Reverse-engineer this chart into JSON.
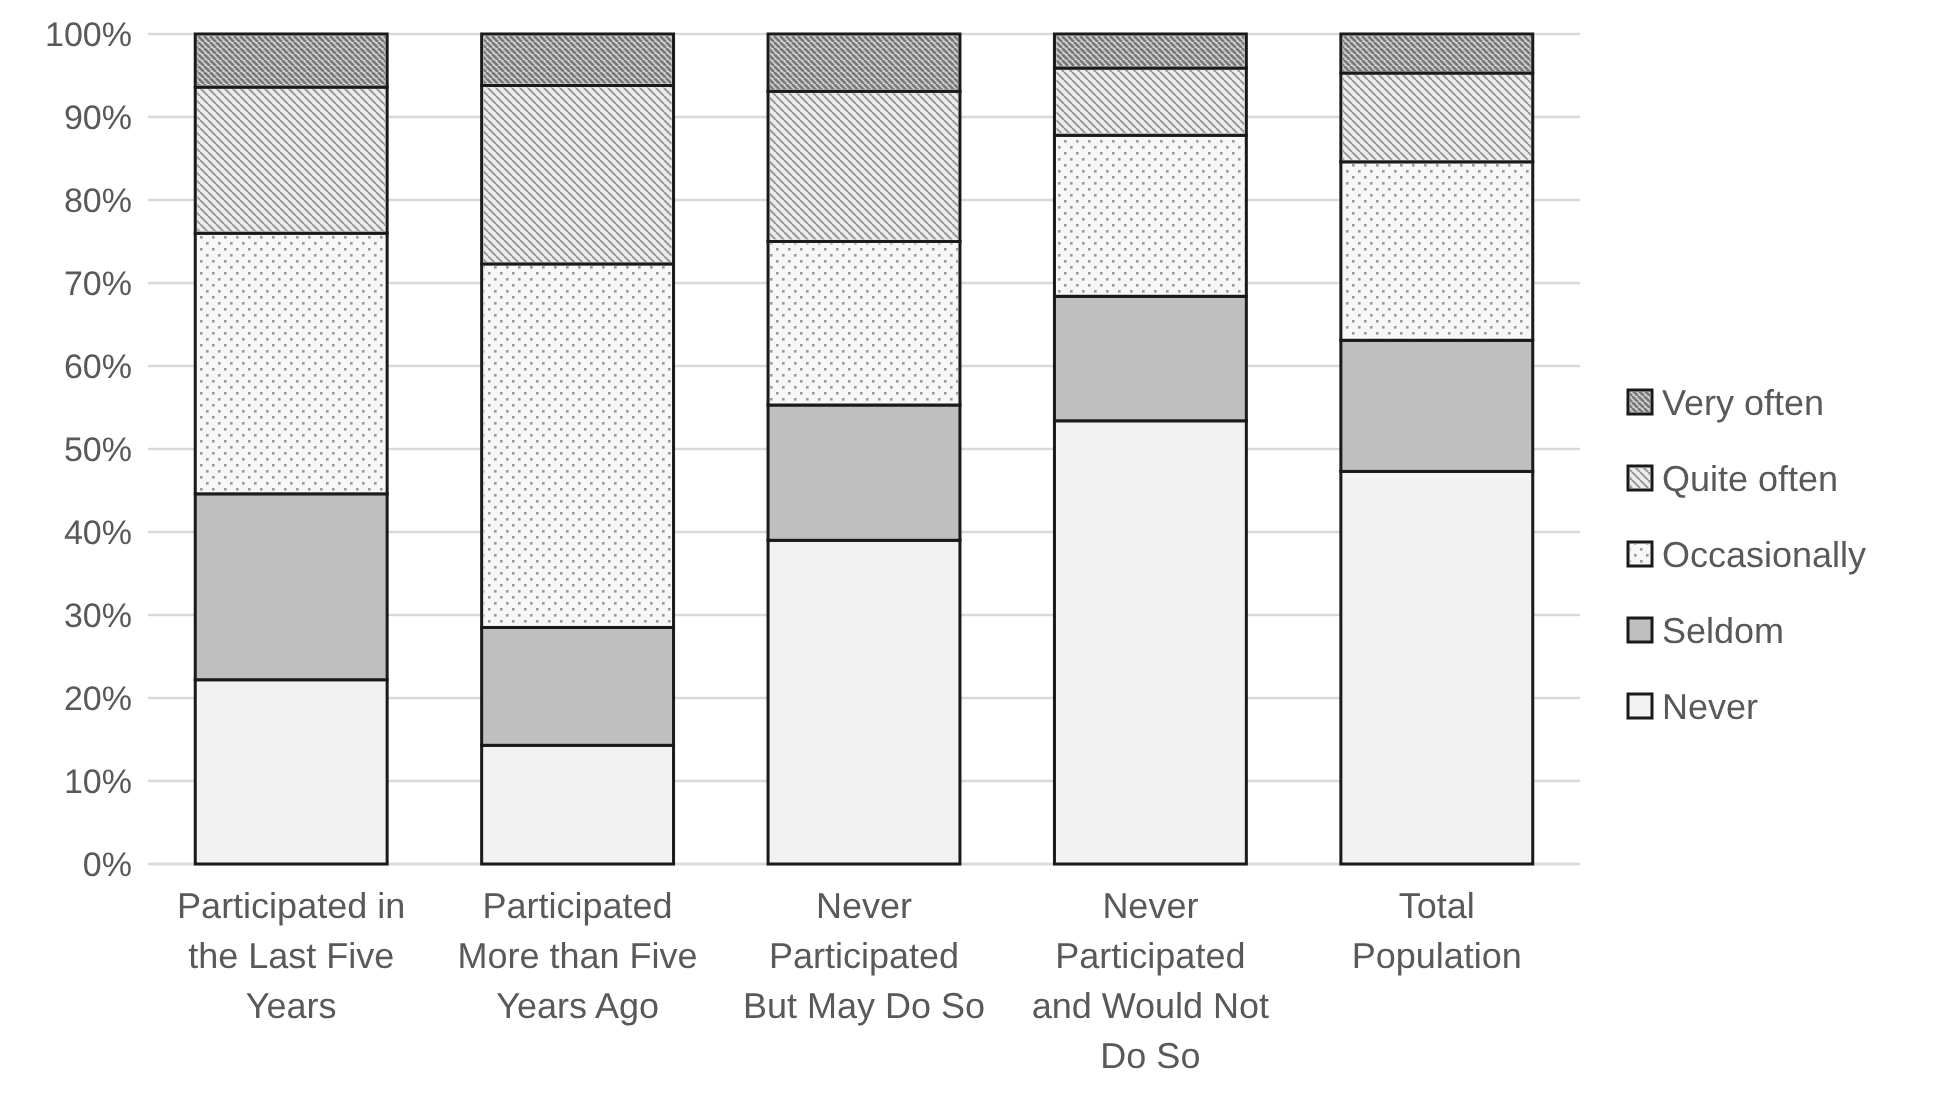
{
  "chart_data": {
    "type": "bar",
    "stacked": true,
    "categories": [
      "Participated in the Last Five Years",
      "Participated More than Five Years Ago",
      "Never Participated But May Do So",
      "Never Participated and Would Not Do So",
      "Total Population"
    ],
    "series": [
      {
        "name": "Never",
        "color": "#f2f2f2",
        "values": [
          22.2,
          14.3,
          39.0,
          53.4,
          47.3
        ]
      },
      {
        "name": "Seldom",
        "color": "#bfbfbf",
        "values": [
          22.4,
          14.2,
          16.3,
          15.0,
          15.8
        ]
      },
      {
        "name": "Occasionally",
        "color": "#f7f7f7",
        "values": [
          31.4,
          43.8,
          19.7,
          19.4,
          21.5
        ]
      },
      {
        "name": "Quite often",
        "color": "#ececec",
        "values": [
          17.6,
          21.5,
          18.1,
          8.1,
          10.7
        ]
      },
      {
        "name": "Very often",
        "color": "#d6d6d6",
        "values": [
          6.4,
          6.2,
          6.9,
          4.1,
          4.7
        ]
      }
    ],
    "ylim": [
      0,
      100
    ],
    "yticks": [
      {
        "value": 0,
        "label": "0%"
      },
      {
        "value": 10,
        "label": "10%"
      },
      {
        "value": 20,
        "label": "20%"
      },
      {
        "value": 30,
        "label": "30%"
      },
      {
        "value": 40,
        "label": "40%"
      },
      {
        "value": 50,
        "label": "50%"
      },
      {
        "value": 60,
        "label": "60%"
      },
      {
        "value": 70,
        "label": "70%"
      },
      {
        "value": 80,
        "label": "80%"
      },
      {
        "value": 90,
        "label": "90%"
      },
      {
        "value": 100,
        "label": "100%"
      }
    ],
    "grid": "y",
    "legend": "right"
  }
}
